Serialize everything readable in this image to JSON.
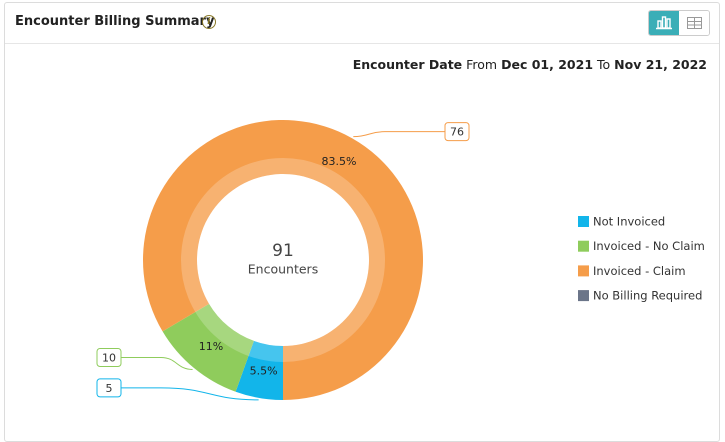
{
  "chart_data": {
    "type": "donut",
    "title": "Encounter Billing Summary",
    "date_range": {
      "label": "Encounter Date",
      "from_word": "From",
      "from": "Dec 01, 2021",
      "to_word": "To",
      "to": "Nov 21, 2022"
    },
    "categories": [
      "Not Invoiced",
      "Invoiced - No Claim",
      "Invoiced - Claim",
      "No Billing Required"
    ],
    "values": [
      5,
      10,
      76,
      0
    ],
    "percentages": [
      5.5,
      11,
      83.5,
      null
    ],
    "percentage_labels": [
      "5.5%",
      "11%",
      "83.5%",
      null
    ],
    "colors": [
      "#12b5ea",
      "#8fcc5c",
      "#f59d4a",
      "#6b7589"
    ],
    "center_value": 91,
    "center_label": "Encounters",
    "legend": "right"
  }
}
